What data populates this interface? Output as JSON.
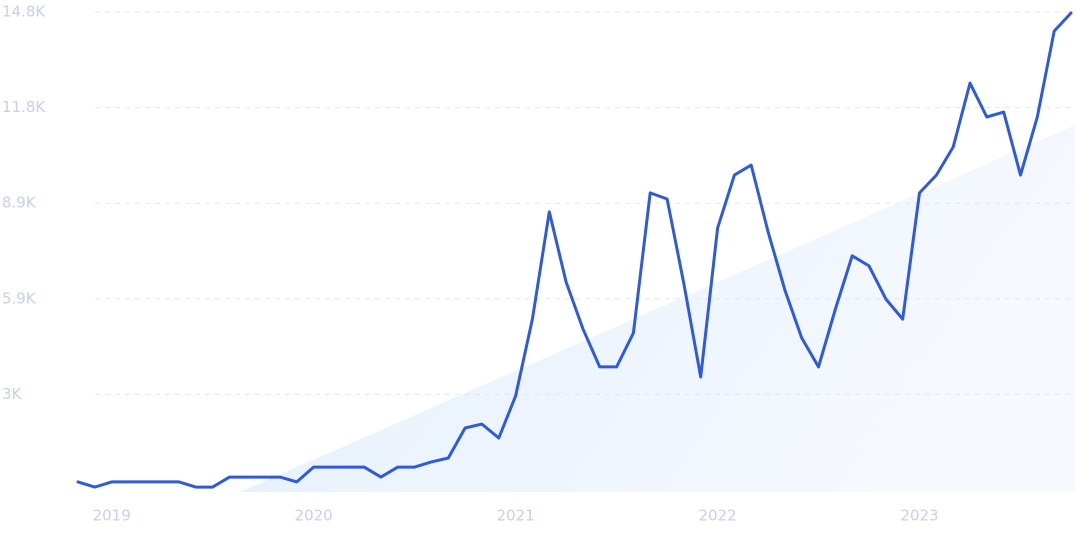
{
  "chart_data": {
    "type": "line",
    "color": "#2f5bd8",
    "categories": [
      null,
      null,
      "2019",
      null,
      null,
      null,
      null,
      null,
      null,
      null,
      null,
      null,
      null,
      null,
      "2020",
      null,
      null,
      null,
      null,
      null,
      null,
      null,
      null,
      null,
      null,
      null,
      "2021",
      null,
      null,
      null,
      null,
      null,
      null,
      null,
      null,
      null,
      null,
      null,
      "2022",
      null,
      null,
      null,
      null,
      null,
      null,
      null,
      null,
      null,
      null,
      null,
      "2023",
      null,
      null,
      null,
      null,
      null,
      null,
      null,
      null,
      null
    ],
    "values": [
      250,
      90,
      250,
      250,
      250,
      250,
      250,
      90,
      90,
      400,
      400,
      400,
      400,
      250,
      710,
      710,
      710,
      710,
      400,
      710,
      710,
      870,
      990,
      1920,
      2040,
      1610,
      2910,
      5290,
      8610,
      6440,
      4990,
      3810,
      3810,
      4860,
      9200,
      9010,
      6380,
      3500,
      8110,
      9750,
      10060,
      7990,
      6190,
      4710,
      3810,
      5600,
      7250,
      6940,
      5910,
      5290,
      9200,
      9750,
      10620,
      12600,
      11550,
      11700,
      9750,
      11550,
      14210,
      14770
    ],
    "ylim": [
      0,
      14800
    ],
    "yticks": [
      {
        "value": 2960,
        "label": "3K"
      },
      {
        "value": 5920,
        "label": "5.9K"
      },
      {
        "value": 8880,
        "label": "8.9K"
      },
      {
        "value": 11840,
        "label": "11.8K"
      },
      {
        "value": 14800,
        "label": "14.8K"
      }
    ],
    "grid": true
  }
}
